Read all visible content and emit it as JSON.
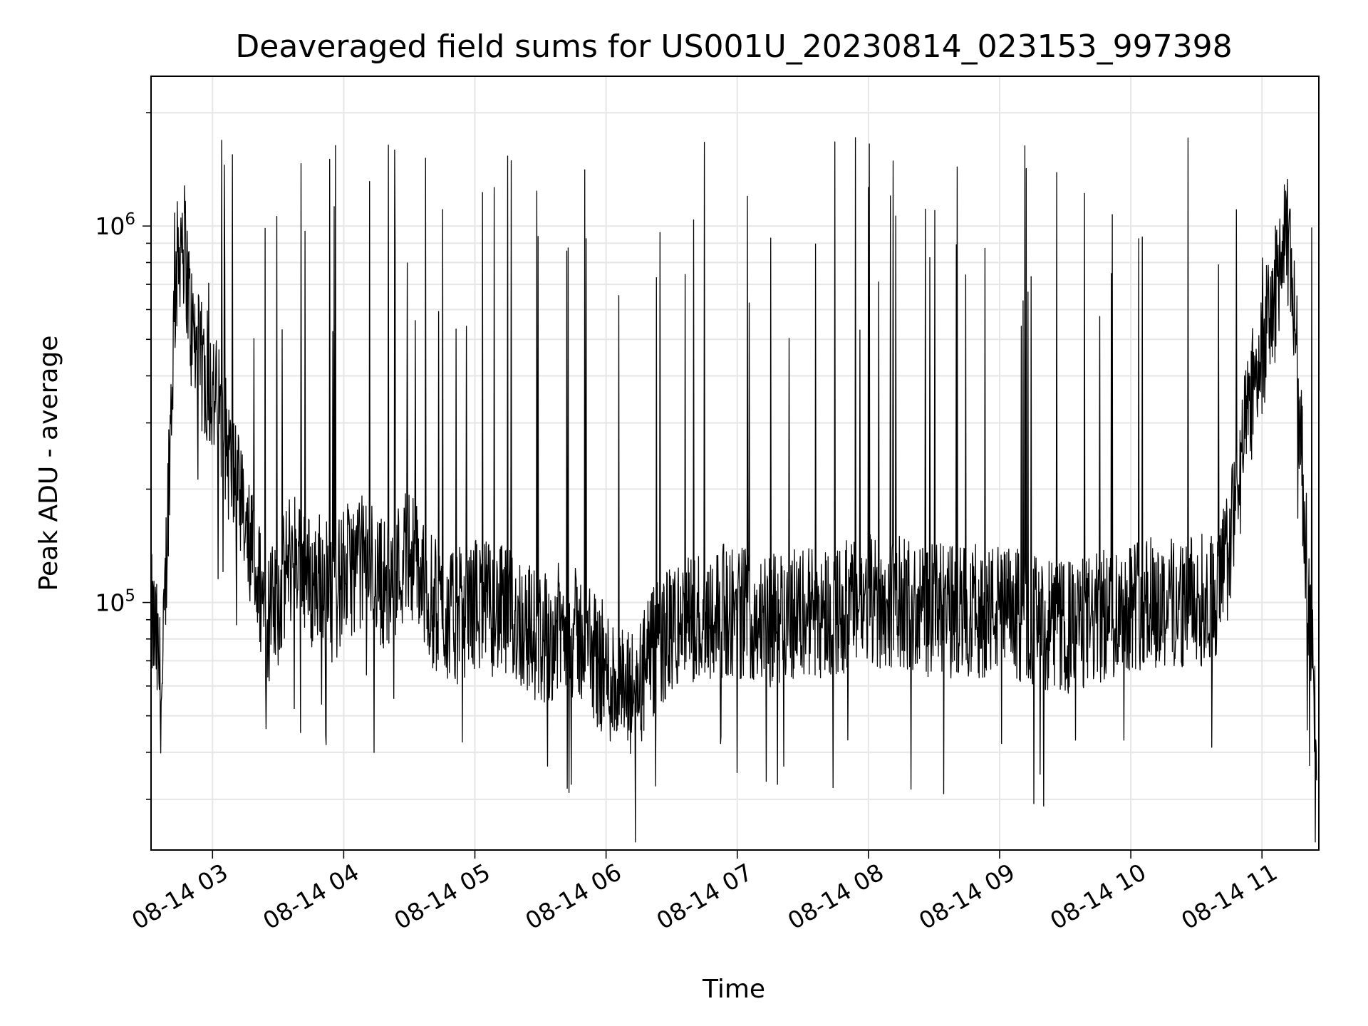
{
  "chart_data": {
    "type": "line",
    "title": "Deaveraged field sums for US001U_20230814_023153_997398",
    "xlabel": "Time",
    "ylabel": "Peak ADU - average",
    "yscale": "log",
    "ylim": [
      22000,
      2500000
    ],
    "xlim": [
      "2023-08-14 02:31:53",
      "2023-08-14 11:26:00"
    ],
    "x_ticks": [
      {
        "value": "2023-08-14 03:00",
        "label": "08-14 03"
      },
      {
        "value": "2023-08-14 04:00",
        "label": "08-14 04"
      },
      {
        "value": "2023-08-14 05:00",
        "label": "08-14 05"
      },
      {
        "value": "2023-08-14 06:00",
        "label": "08-14 06"
      },
      {
        "value": "2023-08-14 07:00",
        "label": "08-14 07"
      },
      {
        "value": "2023-08-14 08:00",
        "label": "08-14 08"
      },
      {
        "value": "2023-08-14 09:00",
        "label": "08-14 09"
      },
      {
        "value": "2023-08-14 10:00",
        "label": "08-14 10"
      },
      {
        "value": "2023-08-14 11:00",
        "label": "08-14 11"
      }
    ],
    "y_ticks": [
      {
        "value": 100000,
        "base": "10",
        "exp": "5"
      },
      {
        "value": 1000000,
        "base": "10",
        "exp": "6"
      }
    ],
    "grid": true,
    "line_color": "#000000",
    "series": [
      {
        "x": [
          "2023-08-14 02:32",
          "2023-08-14 02:34",
          "2023-08-14 02:37",
          "2023-08-14 02:40",
          "2023-08-14 02:43",
          "2023-08-14 02:46",
          "2023-08-14 02:48",
          "2023-08-14 02:50",
          "2023-08-14 02:53",
          "2023-08-14 02:56",
          "2023-08-14 02:59",
          "2023-08-14 03:03",
          "2023-08-14 03:07",
          "2023-08-14 03:11",
          "2023-08-14 03:15",
          "2023-08-14 03:20",
          "2023-08-14 03:25",
          "2023-08-14 03:30",
          "2023-08-14 03:35",
          "2023-08-14 03:40",
          "2023-08-14 03:45",
          "2023-08-14 03:50",
          "2023-08-14 03:55",
          "2023-08-14 04:00",
          "2023-08-14 04:10",
          "2023-08-14 04:20",
          "2023-08-14 04:30",
          "2023-08-14 04:40",
          "2023-08-14 04:50",
          "2023-08-14 05:00",
          "2023-08-14 05:10",
          "2023-08-14 05:20",
          "2023-08-14 05:30",
          "2023-08-14 05:40",
          "2023-08-14 05:50",
          "2023-08-14 06:00",
          "2023-08-14 06:05",
          "2023-08-14 06:10",
          "2023-08-14 06:15",
          "2023-08-14 06:20",
          "2023-08-14 06:30",
          "2023-08-14 06:40",
          "2023-08-14 06:50",
          "2023-08-14 07:00",
          "2023-08-14 07:15",
          "2023-08-14 07:30",
          "2023-08-14 07:45",
          "2023-08-14 08:00",
          "2023-08-14 08:15",
          "2023-08-14 08:30",
          "2023-08-14 08:45",
          "2023-08-14 09:00",
          "2023-08-14 09:15",
          "2023-08-14 09:30",
          "2023-08-14 09:45",
          "2023-08-14 10:00",
          "2023-08-14 10:15",
          "2023-08-14 10:30",
          "2023-08-14 10:40",
          "2023-08-14 10:45",
          "2023-08-14 10:50",
          "2023-08-14 10:55",
          "2023-08-14 11:00",
          "2023-08-14 11:05",
          "2023-08-14 11:08",
          "2023-08-14 11:12",
          "2023-08-14 11:15",
          "2023-08-14 11:18",
          "2023-08-14 11:20",
          "2023-08-14 11:22",
          "2023-08-14 11:24",
          "2023-08-14 11:25"
        ],
        "y": [
          90000,
          80000,
          55000,
          220000,
          700000,
          1000000,
          800000,
          550000,
          450000,
          400000,
          380000,
          320000,
          250000,
          200000,
          150000,
          120000,
          90000,
          100000,
          130000,
          140000,
          110000,
          120000,
          100000,
          120000,
          130000,
          110000,
          140000,
          100000,
          90000,
          100000,
          95000,
          90000,
          80000,
          85000,
          80000,
          65000,
          60000,
          55000,
          60000,
          70000,
          85000,
          90000,
          95000,
          95000,
          90000,
          95000,
          95000,
          100000,
          100000,
          95000,
          95000,
          95000,
          90000,
          85000,
          90000,
          100000,
          100000,
          100000,
          105000,
          140000,
          220000,
          350000,
          480000,
          600000,
          800000,
          900000,
          600000,
          250000,
          150000,
          80000,
          55000,
          30000
        ]
      }
    ]
  }
}
